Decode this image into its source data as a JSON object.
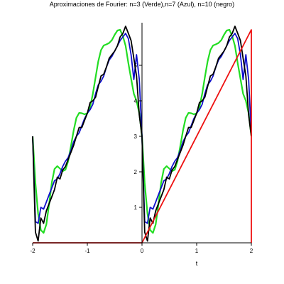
{
  "chart_data": {
    "type": "line",
    "title": "Aproximaciones de Fourier: n=3 (Verde),n=7 (Azul), n=10 (negro)",
    "xlabel": "t",
    "ylabel": "",
    "xlim": [
      -2,
      2
    ],
    "ylim": [
      0,
      6.2
    ],
    "x_ticks": [
      -2,
      -1,
      0,
      1,
      2
    ],
    "y_ticks": [
      1,
      2,
      3,
      4,
      5
    ],
    "grid": false,
    "series": [
      {
        "name": "Verde",
        "color": "#22dd22",
        "x": [
          -2.0,
          -1.95,
          -1.9,
          -1.85,
          -1.8,
          -1.75,
          -1.7,
          -1.65,
          -1.6,
          -1.55,
          -1.5,
          -1.45,
          -1.4,
          -1.35,
          -1.3,
          -1.25,
          -1.2,
          -1.15,
          -1.1,
          -1.05,
          -1.0,
          -0.95,
          -0.9,
          -0.85,
          -0.8,
          -0.75,
          -0.7,
          -0.65,
          -0.6,
          -0.55,
          -0.5,
          -0.45,
          -0.4,
          -0.35,
          -0.3,
          -0.25,
          -0.2,
          -0.15,
          -0.1,
          -0.05,
          0.0,
          0.05,
          0.1,
          0.15,
          0.2,
          0.25,
          0.3,
          0.35,
          0.4,
          0.45,
          0.5,
          0.55,
          0.6,
          0.65,
          0.7,
          0.75,
          0.8,
          0.85,
          0.9,
          0.95,
          1.0,
          1.05,
          1.1,
          1.15,
          1.2,
          1.25,
          1.3,
          1.35,
          1.4,
          1.45,
          1.5,
          1.55,
          1.6,
          1.65,
          1.7,
          1.75,
          1.8,
          1.85,
          1.9,
          1.95,
          2.0
        ],
        "y": [
          3.0,
          1.68,
          0.82,
          0.36,
          0.28,
          0.52,
          1.08,
          1.7,
          2.08,
          2.16,
          2.09,
          2.02,
          2.06,
          2.3,
          2.72,
          3.17,
          3.52,
          3.66,
          3.65,
          3.62,
          3.65,
          3.82,
          4.19,
          4.66,
          5.11,
          5.43,
          5.56,
          5.59,
          5.63,
          5.71,
          5.86,
          5.98,
          6.0,
          5.82,
          5.55,
          5.06,
          4.63,
          4.2,
          4.0,
          3.65,
          3.0,
          1.68,
          0.82,
          0.36,
          0.28,
          0.52,
          1.08,
          1.7,
          2.08,
          2.16,
          2.09,
          2.02,
          2.06,
          2.3,
          2.72,
          3.17,
          3.52,
          3.66,
          3.65,
          3.62,
          3.65,
          3.82,
          4.19,
          4.66,
          5.11,
          5.43,
          5.56,
          5.59,
          5.63,
          5.71,
          5.86,
          5.98,
          6.0,
          5.82,
          5.55,
          5.06,
          4.63,
          4.2,
          4.0,
          3.65,
          3.0
        ]
      },
      {
        "name": "Azul",
        "color": "#1010cc",
        "x": [
          -2.0,
          -1.95,
          -1.9,
          -1.85,
          -1.8,
          -1.75,
          -1.7,
          -1.65,
          -1.6,
          -1.55,
          -1.5,
          -1.45,
          -1.4,
          -1.35,
          -1.3,
          -1.25,
          -1.2,
          -1.15,
          -1.1,
          -1.05,
          -1.0,
          -0.95,
          -0.9,
          -0.85,
          -0.8,
          -0.75,
          -0.7,
          -0.65,
          -0.6,
          -0.55,
          -0.5,
          -0.45,
          -0.4,
          -0.35,
          -0.3,
          -0.25,
          -0.2,
          -0.15,
          -0.1,
          -0.05,
          0.0,
          0.05,
          0.1,
          0.15,
          0.2,
          0.25,
          0.3,
          0.35,
          0.4,
          0.45,
          0.5,
          0.55,
          0.6,
          0.65,
          0.7,
          0.75,
          0.8,
          0.85,
          0.9,
          0.95,
          1.0,
          1.05,
          1.1,
          1.15,
          1.2,
          1.25,
          1.3,
          1.35,
          1.4,
          1.45,
          1.5,
          1.55,
          1.6,
          1.65,
          1.7,
          1.75,
          1.8,
          1.85,
          1.9,
          1.95,
          2.0
        ],
        "y": [
          3.0,
          0.6,
          0.55,
          1.0,
          0.95,
          1.15,
          1.35,
          1.55,
          1.75,
          1.8,
          1.95,
          2.15,
          2.3,
          2.4,
          2.6,
          2.85,
          3.0,
          3.1,
          3.3,
          3.5,
          3.65,
          3.75,
          3.9,
          4.2,
          4.45,
          4.55,
          4.7,
          4.95,
          5.15,
          5.25,
          5.4,
          5.55,
          5.7,
          5.8,
          5.9,
          5.75,
          5.3,
          4.6,
          5.3,
          4.6,
          3.0,
          0.6,
          0.55,
          1.0,
          0.95,
          1.15,
          1.35,
          1.55,
          1.75,
          1.8,
          1.95,
          2.15,
          2.3,
          2.4,
          2.6,
          2.85,
          3.0,
          3.1,
          3.3,
          3.5,
          3.65,
          3.75,
          3.9,
          4.2,
          4.45,
          4.55,
          4.7,
          4.95,
          5.15,
          5.25,
          5.4,
          5.55,
          5.7,
          5.8,
          5.9,
          5.75,
          5.3,
          4.6,
          5.3,
          4.6,
          3.0
        ]
      },
      {
        "name": "negro",
        "color": "#000000",
        "x": [
          -2.0,
          -1.95,
          -1.9,
          -1.85,
          -1.8,
          -1.75,
          -1.7,
          -1.65,
          -1.6,
          -1.55,
          -1.5,
          -1.45,
          -1.4,
          -1.35,
          -1.3,
          -1.25,
          -1.2,
          -1.15,
          -1.1,
          -1.05,
          -1.0,
          -0.95,
          -0.9,
          -0.85,
          -0.8,
          -0.75,
          -0.7,
          -0.65,
          -0.6,
          -0.55,
          -0.5,
          -0.45,
          -0.4,
          -0.35,
          -0.3,
          -0.25,
          -0.2,
          -0.15,
          -0.1,
          -0.05,
          0.0,
          0.05,
          0.1,
          0.15,
          0.2,
          0.25,
          0.3,
          0.35,
          0.4,
          0.45,
          0.5,
          0.55,
          0.6,
          0.65,
          0.7,
          0.75,
          0.8,
          0.85,
          0.9,
          0.95,
          1.0,
          1.05,
          1.1,
          1.15,
          1.2,
          1.25,
          1.3,
          1.35,
          1.4,
          1.45,
          1.5,
          1.55,
          1.6,
          1.65,
          1.7,
          1.75,
          1.8,
          1.85,
          1.9,
          1.95,
          2.0
        ],
        "y": [
          3.0,
          0.3,
          0.05,
          0.7,
          0.55,
          0.9,
          1.1,
          1.3,
          1.5,
          1.85,
          1.8,
          2.05,
          2.15,
          2.35,
          2.55,
          2.75,
          3.0,
          3.25,
          3.25,
          3.45,
          3.65,
          3.95,
          4.0,
          4.1,
          4.4,
          4.7,
          4.75,
          4.95,
          5.2,
          5.3,
          5.4,
          5.55,
          5.8,
          5.9,
          6.1,
          5.9,
          5.7,
          5.2,
          4.7,
          3.6,
          3.0,
          0.3,
          0.05,
          0.7,
          0.55,
          0.9,
          1.1,
          1.3,
          1.5,
          1.85,
          1.8,
          2.05,
          2.15,
          2.35,
          2.55,
          2.75,
          3.0,
          3.25,
          3.25,
          3.45,
          3.65,
          3.95,
          4.0,
          4.1,
          4.4,
          4.7,
          4.75,
          4.95,
          5.2,
          5.3,
          5.4,
          5.55,
          5.8,
          5.9,
          6.1,
          5.9,
          5.7,
          5.2,
          4.7,
          3.6,
          3.0
        ]
      },
      {
        "name": "",
        "color": "#ee1111",
        "x": [
          -2.0,
          -0.001,
          0.0,
          1.999,
          2.0,
          2.0
        ],
        "y": [
          0.0,
          0.0,
          0.0,
          6.0,
          6.0,
          0.0
        ]
      }
    ]
  }
}
